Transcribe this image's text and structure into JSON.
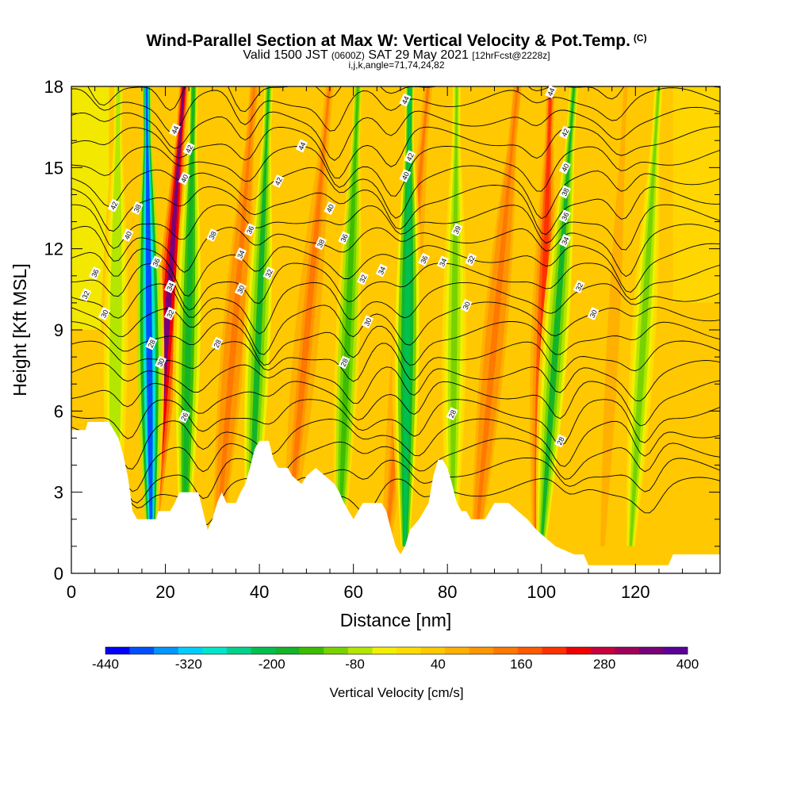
{
  "header": {
    "title": "Wind-Parallel Section at Max W: Vertical Velocity & Pot.Temp.",
    "copyright": "(C)",
    "subtitle_a": "Valid 1500 JST",
    "subtitle_b": "(0600Z)",
    "subtitle_c": "SAT 29 May 2021",
    "subtitle_d": "[12hrFcst@2228z]",
    "subtitle2": "i,j,k,angle=71,74,24,82"
  },
  "chart_data": {
    "type": "heatmap",
    "xlabel": "Distance [nm]",
    "ylabel": "Height [Kft MSL]",
    "xlim": [
      0,
      138
    ],
    "ylim": [
      0,
      18
    ],
    "x_ticks": [
      0,
      20,
      40,
      60,
      80,
      100,
      120
    ],
    "y_ticks": [
      0,
      3,
      6,
      9,
      12,
      15,
      18
    ],
    "x_tick_labels": [
      "0",
      "20",
      "40",
      "60",
      "80",
      "100",
      "120"
    ],
    "y_tick_labels": [
      "0",
      "3",
      "6",
      "9",
      "12",
      "15",
      "18"
    ],
    "colorbar": {
      "label": "Vertical Velocity [cm/s]",
      "labeled_values": [
        -440,
        -320,
        -200,
        -80,
        40,
        160,
        280,
        400
      ],
      "labels": [
        "-440",
        "-320",
        "-200",
        "-80",
        "40",
        "160",
        "280",
        "400"
      ],
      "colors": [
        "#0000ff",
        "#0050ff",
        "#0095ff",
        "#00cdff",
        "#00e6c8",
        "#00d28c",
        "#00c050",
        "#14b428",
        "#3cbe00",
        "#78d200",
        "#b4e600",
        "#f0f000",
        "#ffdc00",
        "#ffc800",
        "#ffb000",
        "#ff9600",
        "#ff7800",
        "#ff5a00",
        "#ff3000",
        "#f00000",
        "#c8003c",
        "#a0005a",
        "#780078",
        "#5a0096"
      ]
    },
    "updraft_bands": [
      {
        "x_top": 24,
        "x_bottom": 17,
        "w": 330
      },
      {
        "x_top": 39,
        "x_bottom": 31,
        "w": 150
      },
      {
        "x_top": 55,
        "x_bottom": 46,
        "w": 130
      },
      {
        "x_top": 76,
        "x_bottom": 67,
        "w": 140
      },
      {
        "x_top": 95,
        "x_bottom": 86,
        "w": 150
      },
      {
        "x_top": 102,
        "x_bottom": 99,
        "w": 200
      },
      {
        "x_top": 118,
        "x_bottom": 113,
        "w": 70
      }
    ],
    "downdraft_bands": [
      {
        "x_top": 16,
        "x_bottom": 17,
        "w": -380
      },
      {
        "x_top": 10,
        "x_bottom": 9,
        "w": -90
      },
      {
        "x_top": 26,
        "x_bottom": 24,
        "w": -180
      },
      {
        "x_top": 42,
        "x_bottom": 38,
        "w": -170
      },
      {
        "x_top": 61,
        "x_bottom": 57,
        "w": -150
      },
      {
        "x_top": 72,
        "x_bottom": 71,
        "w": -230
      },
      {
        "x_top": 82,
        "x_bottom": 81,
        "w": -110
      },
      {
        "x_top": 107,
        "x_bottom": 100,
        "w": -170
      },
      {
        "x_top": 125,
        "x_bottom": 119,
        "w": -120
      }
    ],
    "theta_contour_labels": [
      {
        "v": "44",
        "x": 22,
        "y": 16.4
      },
      {
        "v": "42",
        "x": 25,
        "y": 15.7
      },
      {
        "v": "40",
        "x": 24,
        "y": 14.6
      },
      {
        "v": "42",
        "x": 9,
        "y": 13.6
      },
      {
        "v": "38",
        "x": 14,
        "y": 13.5
      },
      {
        "v": "40",
        "x": 12,
        "y": 12.5
      },
      {
        "v": "36",
        "x": 5,
        "y": 11.1
      },
      {
        "v": "32",
        "x": 3,
        "y": 10.3
      },
      {
        "v": "30",
        "x": 7,
        "y": 9.6
      },
      {
        "v": "36",
        "x": 18,
        "y": 11.5
      },
      {
        "v": "34",
        "x": 21,
        "y": 10.6
      },
      {
        "v": "32",
        "x": 21,
        "y": 9.6
      },
      {
        "v": "28",
        "x": 17,
        "y": 8.5
      },
      {
        "v": "30",
        "x": 19,
        "y": 7.8
      },
      {
        "v": "26",
        "x": 24,
        "y": 5.8
      },
      {
        "v": "38",
        "x": 30,
        "y": 12.5
      },
      {
        "v": "36",
        "x": 38,
        "y": 12.7
      },
      {
        "v": "34",
        "x": 36,
        "y": 11.8
      },
      {
        "v": "32",
        "x": 42,
        "y": 11.1
      },
      {
        "v": "30",
        "x": 36,
        "y": 10.5
      },
      {
        "v": "28",
        "x": 31,
        "y": 8.5
      },
      {
        "v": "44",
        "x": 49,
        "y": 15.8
      },
      {
        "v": "42",
        "x": 44,
        "y": 14.5
      },
      {
        "v": "40",
        "x": 55,
        "y": 13.5
      },
      {
        "v": "38",
        "x": 53,
        "y": 12.2
      },
      {
        "v": "36",
        "x": 58,
        "y": 12.4
      },
      {
        "v": "32",
        "x": 62,
        "y": 10.9
      },
      {
        "v": "30",
        "x": 63,
        "y": 9.3
      },
      {
        "v": "34",
        "x": 66,
        "y": 11.2
      },
      {
        "v": "28",
        "x": 58,
        "y": 7.8
      },
      {
        "v": "44",
        "x": 71,
        "y": 17.5
      },
      {
        "v": "42",
        "x": 72,
        "y": 15.4
      },
      {
        "v": "40",
        "x": 71,
        "y": 14.7
      },
      {
        "v": "36",
        "x": 75,
        "y": 11.6
      },
      {
        "v": "34",
        "x": 79,
        "y": 11.5
      },
      {
        "v": "32",
        "x": 85,
        "y": 11.6
      },
      {
        "v": "39",
        "x": 82,
        "y": 12.7
      },
      {
        "v": "30",
        "x": 84,
        "y": 9.9
      },
      {
        "v": "28",
        "x": 81,
        "y": 5.9
      },
      {
        "v": "44",
        "x": 102,
        "y": 17.8
      },
      {
        "v": "42",
        "x": 105,
        "y": 16.3
      },
      {
        "v": "40",
        "x": 105,
        "y": 15.0
      },
      {
        "v": "38",
        "x": 105,
        "y": 14.1
      },
      {
        "v": "36",
        "x": 105,
        "y": 13.2
      },
      {
        "v": "34",
        "x": 105,
        "y": 12.3
      },
      {
        "v": "32",
        "x": 108,
        "y": 10.6
      },
      {
        "v": "30",
        "x": 111,
        "y": 9.6
      },
      {
        "v": "28",
        "x": 104,
        "y": 4.9
      }
    ],
    "terrain_kft": [
      [
        0,
        5.3
      ],
      [
        3,
        5.3
      ],
      [
        3.5,
        5.6
      ],
      [
        8,
        5.6
      ],
      [
        9,
        5.3
      ],
      [
        10,
        5.0
      ],
      [
        11,
        4.4
      ],
      [
        12,
        3.6
      ],
      [
        12.5,
        3.0
      ],
      [
        13,
        2.3
      ],
      [
        14,
        2.0
      ],
      [
        18,
        2.0
      ],
      [
        18.5,
        2.3
      ],
      [
        21,
        2.3
      ],
      [
        22,
        2.6
      ],
      [
        23,
        3.0
      ],
      [
        27,
        3.0
      ],
      [
        28,
        2.3
      ],
      [
        29,
        1.6
      ],
      [
        30,
        2.0
      ],
      [
        31,
        2.6
      ],
      [
        32,
        3.0
      ],
      [
        33,
        2.6
      ],
      [
        35,
        2.6
      ],
      [
        36,
        3.0
      ],
      [
        37,
        3.3
      ],
      [
        38,
        3.9
      ],
      [
        39,
        4.6
      ],
      [
        40,
        4.9
      ],
      [
        42,
        4.9
      ],
      [
        43,
        4.2
      ],
      [
        44,
        3.9
      ],
      [
        46,
        3.9
      ],
      [
        47,
        3.6
      ],
      [
        49,
        3.3
      ],
      [
        50,
        3.6
      ],
      [
        52,
        3.9
      ],
      [
        54,
        3.6
      ],
      [
        56,
        3.3
      ],
      [
        57,
        3.0
      ],
      [
        58,
        2.6
      ],
      [
        59,
        2.3
      ],
      [
        60,
        2.0
      ],
      [
        61,
        2.3
      ],
      [
        62,
        2.6
      ],
      [
        66,
        2.6
      ],
      [
        67,
        2.3
      ],
      [
        68,
        1.6
      ],
      [
        69,
        1.0
      ],
      [
        70,
        0.7
      ],
      [
        71,
        1.0
      ],
      [
        72,
        1.6
      ],
      [
        74,
        2.0
      ],
      [
        76,
        2.6
      ],
      [
        77,
        3.6
      ],
      [
        78,
        4.2
      ],
      [
        79,
        4.2
      ],
      [
        80,
        3.9
      ],
      [
        81,
        3.3
      ],
      [
        82,
        2.6
      ],
      [
        83,
        2.3
      ],
      [
        84,
        2.3
      ],
      [
        85,
        2.0
      ],
      [
        88,
        2.0
      ],
      [
        89,
        2.3
      ],
      [
        90,
        2.6
      ],
      [
        93,
        2.6
      ],
      [
        95,
        2.3
      ],
      [
        97,
        2.0
      ],
      [
        99,
        1.6
      ],
      [
        101,
        1.3
      ],
      [
        103,
        1.0
      ],
      [
        107,
        0.7
      ],
      [
        109,
        0.7
      ],
      [
        110,
        0.3
      ],
      [
        127,
        0.3
      ],
      [
        128,
        0.7
      ],
      [
        138,
        0.7
      ]
    ]
  }
}
